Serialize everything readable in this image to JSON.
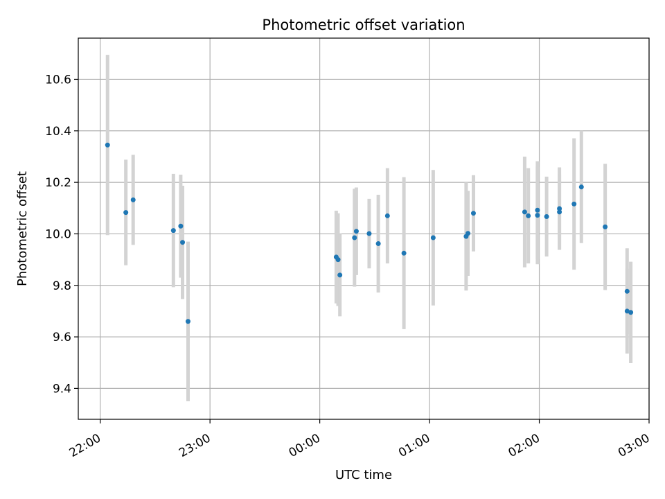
{
  "chart_data": {
    "type": "scatter",
    "title": "Photometric offset variation",
    "xlabel": "UTC time",
    "ylabel": "Photometric offset",
    "x_ticks": [
      "22:00",
      "23:00",
      "00:00",
      "01:00",
      "02:00",
      "03:00"
    ],
    "x_tick_hours": [
      0,
      1,
      2,
      3,
      4,
      5
    ],
    "x_hours_range": [
      -0.2,
      5.0
    ],
    "y_ticks": [
      "9.4",
      "9.6",
      "9.8",
      "10.0",
      "10.2",
      "10.4",
      "10.6"
    ],
    "ylim": [
      9.28,
      10.76
    ],
    "grid": true,
    "colors": {
      "points": "#1f77b4",
      "errorbars": "#d3d3d3"
    },
    "points": [
      {
        "x": "22:04",
        "y": 10.345,
        "err": 0.35
      },
      {
        "x": "22:14",
        "y": 10.083,
        "err": 0.205
      },
      {
        "x": "22:18",
        "y": 10.132,
        "err": 0.175
      },
      {
        "x": "22:40",
        "y": 10.013,
        "err": 0.22
      },
      {
        "x": "22:44",
        "y": 10.03,
        "err": 0.2
      },
      {
        "x": "22:45",
        "y": 9.967,
        "err": 0.22
      },
      {
        "x": "22:48",
        "y": 9.66,
        "err": 0.31
      },
      {
        "x": "00:09",
        "y": 9.91,
        "err": 0.18
      },
      {
        "x": "00:10",
        "y": 9.9,
        "err": 0.18
      },
      {
        "x": "00:11",
        "y": 9.84,
        "err": 0.16
      },
      {
        "x": "00:19",
        "y": 9.985,
        "err": 0.19
      },
      {
        "x": "00:20",
        "y": 10.01,
        "err": 0.17
      },
      {
        "x": "00:27",
        "y": 10.001,
        "err": 0.135
      },
      {
        "x": "00:32",
        "y": 9.962,
        "err": 0.19
      },
      {
        "x": "00:37",
        "y": 10.07,
        "err": 0.185
      },
      {
        "x": "00:46",
        "y": 9.925,
        "err": 0.295
      },
      {
        "x": "01:02",
        "y": 9.985,
        "err": 0.263
      },
      {
        "x": "01:20",
        "y": 9.99,
        "err": 0.21
      },
      {
        "x": "01:21",
        "y": 10.002,
        "err": 0.165
      },
      {
        "x": "01:24",
        "y": 10.08,
        "err": 0.148
      },
      {
        "x": "01:52",
        "y": 10.085,
        "err": 0.215
      },
      {
        "x": "01:54",
        "y": 10.07,
        "err": 0.185
      },
      {
        "x": "01:59",
        "y": 10.072,
        "err": 0.19
      },
      {
        "x": "01:59",
        "y": 10.092,
        "err": 0.19
      },
      {
        "x": "02:04",
        "y": 10.067,
        "err": 0.155
      },
      {
        "x": "02:11",
        "y": 10.085,
        "err": 0.145
      },
      {
        "x": "02:11",
        "y": 10.098,
        "err": 0.16
      },
      {
        "x": "02:19",
        "y": 10.116,
        "err": 0.255
      },
      {
        "x": "02:23",
        "y": 10.182,
        "err": 0.218
      },
      {
        "x": "02:36",
        "y": 10.027,
        "err": 0.245
      },
      {
        "x": "02:48",
        "y": 9.777,
        "err": 0.167
      },
      {
        "x": "02:48",
        "y": 9.7,
        "err": 0.165
      },
      {
        "x": "02:50",
        "y": 9.695,
        "err": 0.197
      }
    ]
  }
}
